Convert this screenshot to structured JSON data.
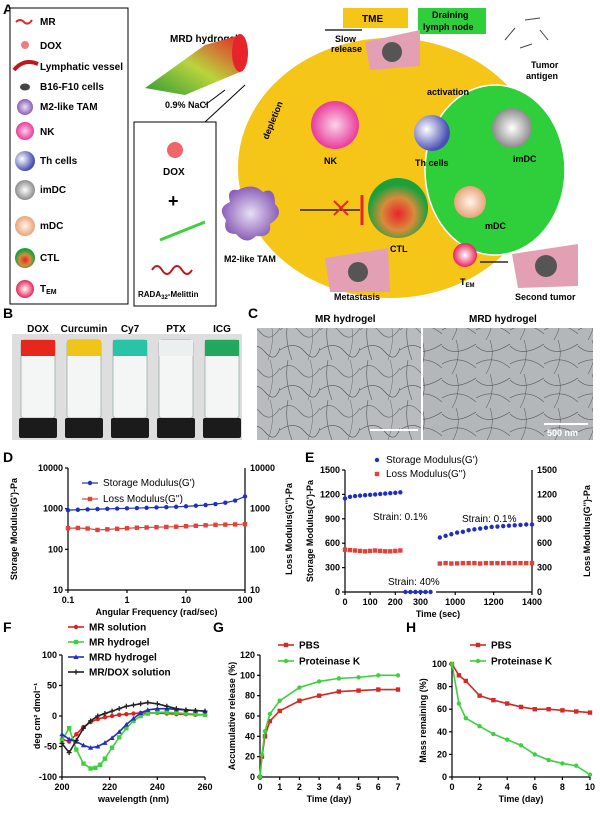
{
  "panels": {
    "A": "A",
    "B": "B",
    "C": "C",
    "D": "D",
    "E": "E",
    "F": "F",
    "G": "G",
    "H": "H"
  },
  "panelA": {
    "legend": [
      {
        "name": "MR"
      },
      {
        "name": "DOX"
      },
      {
        "name": "Lymphatic vessel"
      },
      {
        "name": "B16-F10 cells"
      },
      {
        "name": "M2-like TAM"
      },
      {
        "name": "NK"
      },
      {
        "name": "Th cells"
      },
      {
        "name": "imDC"
      },
      {
        "name": "mDC"
      },
      {
        "name": "CTL"
      },
      {
        "name": "T_EM",
        "main": "T",
        "sub": "EM"
      }
    ],
    "hydrogel_label": "MRD hydrogel",
    "nacl_label": "0.9% NaCl",
    "dox_label": "DOX",
    "plus": "+",
    "rada_main": "RADA",
    "rada_sub": "32",
    "rada_tail": "-Melittin",
    "tme_label": "TME",
    "draining_line1": "Draining",
    "draining_line2": "lymph node",
    "slow_line1": "Slow",
    "slow_line2": "release",
    "tumor_antigen_line1": "Tumor",
    "tumor_antigen_line2": "antigen",
    "activation": "activation",
    "depletion": "depletion",
    "nk": "NK",
    "th": "Th cells",
    "imdc": "imDC",
    "mdc": "mDC",
    "ctl": "CTL",
    "tem_main": "T",
    "tem_sub": "EM",
    "m2": "M2-like TAM",
    "metastasis": "Metastasis",
    "second_tumor": "Second tumor"
  },
  "panelB": {
    "labels": [
      "DOX",
      "Curcumin",
      "Cy7",
      "PTX",
      "ICG"
    ],
    "colors": [
      "#e8271c",
      "#f0c419",
      "#27c4a6",
      "#eceff0",
      "#22a85c"
    ]
  },
  "panelC": {
    "left_title": "MR hydrogel",
    "right_title": "MRD hydrogel",
    "scalebar": "500 nm"
  },
  "chart_data": [
    {
      "panel": "D",
      "type": "line",
      "xscale": "log",
      "xlabel": "Angular Frequency (rad/sec)",
      "ylabel_left": "Storage Modulus(G')-Pa",
      "ylabel_right": "Loss Modulus(G'')-Pa",
      "xlim": [
        0.1,
        100
      ],
      "ylim": [
        10,
        10000
      ],
      "yscale": "log",
      "xticks": [
        "0.1",
        "1",
        "10",
        "100"
      ],
      "yticks": [
        "10",
        "100",
        "1000",
        "10000"
      ],
      "series": [
        {
          "name": "Storage Modulus(G')",
          "color": "#1f2fbf",
          "marker": "circle",
          "x": [
            0.1,
            0.147,
            0.215,
            0.316,
            0.464,
            0.681,
            1,
            1.47,
            2.15,
            3.16,
            4.64,
            6.81,
            10,
            14.7,
            21.5,
            31.6,
            46.4,
            68.1,
            100
          ],
          "values": [
            920,
            940,
            960,
            975,
            990,
            1005,
            1020,
            1035,
            1050,
            1070,
            1090,
            1110,
            1140,
            1180,
            1230,
            1300,
            1400,
            1580,
            2000
          ]
        },
        {
          "name": "Loss Modulus(G'')",
          "color": "#e0423a",
          "marker": "square",
          "x": [
            0.1,
            0.147,
            0.215,
            0.316,
            0.464,
            0.681,
            1,
            1.47,
            2.15,
            3.16,
            4.64,
            6.81,
            10,
            14.7,
            21.5,
            31.6,
            46.4,
            68.1,
            100
          ],
          "values": [
            330,
            335,
            325,
            300,
            310,
            320,
            330,
            340,
            345,
            350,
            355,
            360,
            370,
            380,
            390,
            400,
            405,
            410,
            415
          ]
        }
      ]
    },
    {
      "panel": "E",
      "type": "scatter",
      "xlabel": "Time (sec)",
      "ylabel_left": "Storage Modulus(G')-Pa",
      "ylabel_right": "Loss Modulus(G'')-Pa",
      "ylim": [
        0,
        1500
      ],
      "yticks": [
        "0",
        "300",
        "600",
        "900",
        "1200",
        "1500"
      ],
      "xticks": [
        "0",
        "100",
        "200",
        "300",
        "1000",
        "1200",
        "1400"
      ],
      "annotations": [
        "Strain: 0.1%",
        "Strain: 40%",
        "Strain: 0.1%"
      ],
      "series": [
        {
          "name": "Storage Modulus(G')",
          "color": "#1f2fbf",
          "x": [
            0,
            20,
            40,
            60,
            80,
            100,
            120,
            140,
            160,
            180,
            200,
            220,
            240,
            260,
            280,
            300,
            320,
            340,
            920,
            950,
            980,
            1010,
            1040,
            1070,
            1100,
            1130,
            1160,
            1190,
            1220,
            1250,
            1280,
            1310,
            1340,
            1370,
            1400
          ],
          "values": [
            1150,
            1170,
            1180,
            1185,
            1190,
            1195,
            1200,
            1205,
            1210,
            1215,
            1220,
            1225,
            0,
            0,
            0,
            0,
            0,
            0,
            670,
            690,
            710,
            730,
            740,
            760,
            770,
            780,
            790,
            800,
            805,
            810,
            815,
            820,
            825,
            830,
            830
          ]
        },
        {
          "name": "Loss Modulus(G'')",
          "color": "#e0423a",
          "x": [
            0,
            20,
            40,
            60,
            80,
            100,
            120,
            140,
            160,
            180,
            200,
            220,
            920,
            950,
            980,
            1010,
            1040,
            1070,
            1100,
            1130,
            1160,
            1190,
            1220,
            1250,
            1280,
            1310,
            1340,
            1370,
            1400
          ],
          "values": [
            520,
            515,
            510,
            505,
            500,
            505,
            510,
            505,
            500,
            500,
            505,
            510,
            350,
            355,
            350,
            352,
            355,
            355,
            355,
            350,
            355,
            355,
            355,
            355,
            355,
            355,
            355,
            355,
            355
          ]
        }
      ]
    },
    {
      "panel": "F",
      "type": "line",
      "xlabel": "wavelength (nm)",
      "ylabel": "deg cm² dmol⁻¹",
      "xlim": [
        200,
        260
      ],
      "ylim": [
        -100,
        100
      ],
      "xticks": [
        "200",
        "220",
        "240",
        "260"
      ],
      "yticks": [
        "-100",
        "-50",
        "0",
        "50",
        "100"
      ],
      "series": [
        {
          "name": "MR solution",
          "color": "#e0201c",
          "x": [
            200,
            203,
            206,
            209,
            212,
            215,
            218,
            221,
            224,
            227,
            230,
            233,
            236,
            240,
            244,
            248,
            252,
            256,
            260
          ],
          "values": [
            -38,
            -42,
            -30,
            -18,
            -10,
            -5,
            -2,
            0,
            2,
            3,
            4,
            5,
            5,
            5,
            4,
            3,
            3,
            2,
            2
          ]
        },
        {
          "name": "MR hydrogel",
          "color": "#3ed03e",
          "x": [
            200,
            203,
            206,
            209,
            212,
            214,
            216,
            218,
            221,
            224,
            227,
            230,
            233,
            236,
            240,
            244,
            248,
            252,
            256,
            260
          ],
          "values": [
            -40,
            -20,
            -55,
            -78,
            -86,
            -85,
            -80,
            -70,
            -52,
            -35,
            -20,
            -8,
            0,
            4,
            6,
            6,
            5,
            4,
            3,
            2
          ]
        },
        {
          "name": "MRD hydrogel",
          "color": "#1f2fbf",
          "x": [
            200,
            203,
            206,
            209,
            212,
            215,
            218,
            221,
            224,
            227,
            230,
            233,
            236,
            240,
            244,
            248,
            252,
            256,
            260
          ],
          "values": [
            -30,
            -38,
            -42,
            -48,
            -52,
            -50,
            -44,
            -36,
            -26,
            -14,
            -4,
            5,
            10,
            12,
            12,
            11,
            10,
            9,
            8
          ]
        },
        {
          "name": "MR/DOX solution",
          "color": "#222222",
          "x": [
            200,
            203,
            206,
            209,
            212,
            215,
            218,
            221,
            224,
            227,
            230,
            233,
            236,
            240,
            244,
            248,
            252,
            256,
            260
          ],
          "values": [
            -45,
            -60,
            -40,
            -20,
            -8,
            0,
            4,
            8,
            12,
            16,
            18,
            20,
            22,
            20,
            16,
            12,
            10,
            9,
            8
          ]
        }
      ]
    },
    {
      "panel": "G",
      "type": "line",
      "xlabel": "Time (day)",
      "ylabel": "Accumulative release (%)",
      "xlim": [
        0,
        7
      ],
      "ylim": [
        0,
        120
      ],
      "xticks": [
        "0",
        "1",
        "2",
        "3",
        "4",
        "5",
        "6",
        "7"
      ],
      "yticks": [
        "0",
        "20",
        "40",
        "60",
        "80",
        "100",
        "120"
      ],
      "series": [
        {
          "name": "PBS",
          "color": "#d42a24",
          "x": [
            0,
            0.1,
            0.25,
            0.5,
            1,
            2,
            3,
            4,
            5,
            6,
            7
          ],
          "values": [
            0,
            20,
            40,
            55,
            65,
            75,
            80,
            84,
            85,
            86,
            86
          ]
        },
        {
          "name": "Proteinase K",
          "color": "#3ed03e",
          "x": [
            0,
            0.1,
            0.25,
            0.5,
            1,
            2,
            3,
            4,
            5,
            6,
            7
          ],
          "values": [
            0,
            22,
            45,
            62,
            75,
            88,
            94,
            97,
            98,
            100,
            100
          ]
        }
      ]
    },
    {
      "panel": "H",
      "type": "line",
      "xlabel": "Time (day)",
      "ylabel": "Mass remaining (%)",
      "xlim": [
        0,
        10
      ],
      "ylim": [
        0,
        100
      ],
      "xticks": [
        "0",
        "2",
        "4",
        "6",
        "8",
        "10"
      ],
      "yticks": [
        "0",
        "20",
        "40",
        "60",
        "80",
        "100"
      ],
      "series": [
        {
          "name": "PBS",
          "color": "#d42a24",
          "x": [
            0,
            0.5,
            1,
            2,
            3,
            4,
            5,
            6,
            7,
            8,
            9,
            10
          ],
          "values": [
            100,
            90,
            85,
            72,
            68,
            65,
            62,
            60,
            60,
            59,
            58,
            57
          ]
        },
        {
          "name": "Proteinase K",
          "color": "#3ed03e",
          "x": [
            0,
            0.5,
            1,
            2,
            3,
            4,
            5,
            6,
            7,
            8,
            9,
            10
          ],
          "values": [
            100,
            65,
            52,
            45,
            38,
            33,
            28,
            20,
            15,
            12,
            10,
            2
          ]
        }
      ]
    }
  ]
}
